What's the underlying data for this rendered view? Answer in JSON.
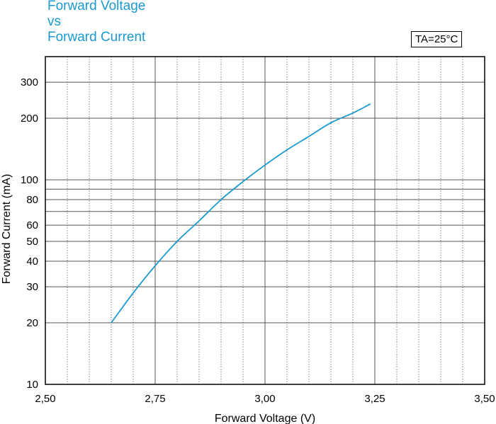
{
  "chart_data": {
    "type": "line",
    "title": [
      "Forward Voltage",
      "vs",
      "Forward Current"
    ],
    "condition": "TA=25°C",
    "xlabel": "Forward Voltage (V)",
    "ylabel": "Forward Current (mA)",
    "x_scale": "linear",
    "y_scale": "log",
    "xlim": [
      2.5,
      3.5
    ],
    "ylim": [
      10,
      400
    ],
    "x_ticks": [
      2.5,
      2.75,
      3.0,
      3.25,
      3.5
    ],
    "x_tick_labels": [
      "2,50",
      "2,75",
      "3,00",
      "3,25",
      "3,50"
    ],
    "y_ticks": [
      10,
      20,
      30,
      40,
      50,
      60,
      80,
      100,
      200,
      300
    ],
    "y_tick_labels": [
      "10",
      "20",
      "30",
      "40",
      "50",
      "60",
      "80",
      "100",
      "200",
      "300"
    ],
    "grid": true,
    "line_color": "#1a9ad0",
    "series": [
      {
        "x": [
          2.65,
          2.7,
          2.75,
          2.8,
          2.85,
          2.9,
          2.95,
          3.0,
          3.05,
          3.1,
          3.15,
          3.2,
          3.24
        ],
        "values": [
          20,
          28,
          38,
          50,
          63,
          80,
          98,
          118,
          140,
          163,
          190,
          212,
          235
        ]
      }
    ]
  }
}
